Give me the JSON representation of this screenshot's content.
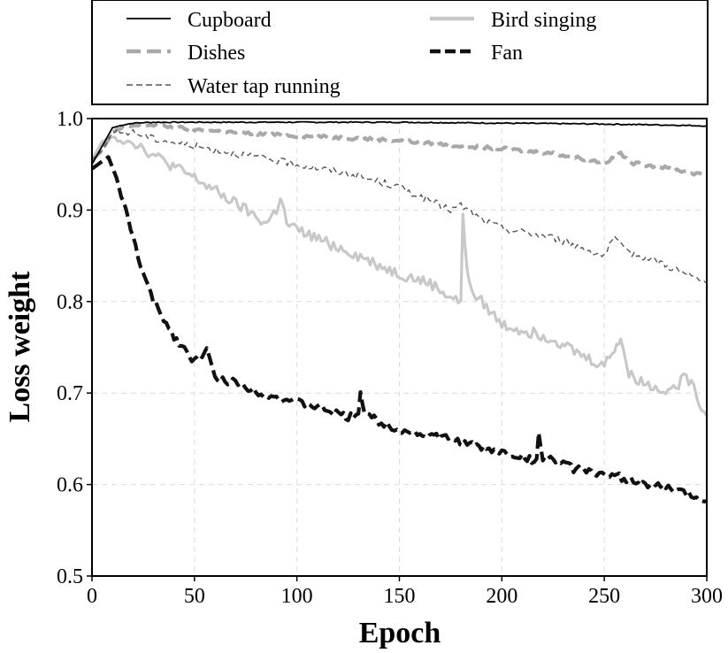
{
  "chart_data": {
    "type": "line",
    "title": "",
    "xlabel": "Epoch",
    "ylabel": "Loss weight",
    "xlim": [
      0,
      300
    ],
    "ylim": [
      0.5,
      1.0
    ],
    "xticks": [
      "0",
      "50",
      "100",
      "150",
      "200",
      "250",
      "300"
    ],
    "yticks": [
      "0.5",
      "0.6",
      "0.7",
      "0.8",
      "0.9",
      "1.0"
    ],
    "grid": true,
    "legend_position": "top (above plot, two columns)",
    "series": [
      {
        "name": "Cupboard",
        "style": "solid-thin",
        "color": "#000000",
        "x": [
          0,
          5,
          10,
          15,
          20,
          30,
          50,
          100,
          150,
          200,
          250,
          280,
          300
        ],
        "y": [
          0.95,
          0.97,
          0.99,
          0.993,
          0.995,
          0.996,
          0.996,
          0.996,
          0.996,
          0.995,
          0.994,
          0.993,
          0.992
        ]
      },
      {
        "name": "Dishes",
        "style": "dashed-thick",
        "color": "#a8aaa8",
        "x": [
          0,
          5,
          10,
          15,
          20,
          30,
          50,
          75,
          100,
          125,
          150,
          175,
          200,
          225,
          250,
          255,
          258,
          262,
          275,
          290,
          300
        ],
        "y": [
          0.955,
          0.965,
          0.985,
          0.99,
          0.992,
          0.993,
          0.988,
          0.984,
          0.981,
          0.979,
          0.976,
          0.971,
          0.967,
          0.962,
          0.952,
          0.957,
          0.963,
          0.952,
          0.948,
          0.942,
          0.937
        ]
      },
      {
        "name": "Water tap running",
        "style": "dashed-thin",
        "color": "#555555",
        "x": [
          0,
          5,
          10,
          20,
          30,
          50,
          75,
          100,
          125,
          150,
          175,
          180,
          190,
          200,
          225,
          250,
          255,
          260,
          275,
          290,
          300
        ],
        "y": [
          0.955,
          0.965,
          0.985,
          0.985,
          0.978,
          0.97,
          0.96,
          0.95,
          0.94,
          0.925,
          0.9,
          0.905,
          0.89,
          0.88,
          0.87,
          0.85,
          0.87,
          0.855,
          0.845,
          0.83,
          0.82
        ]
      },
      {
        "name": "Bird singing",
        "style": "solid-thick",
        "color": "#c8c9c7",
        "x": [
          0,
          5,
          10,
          20,
          30,
          50,
          75,
          85,
          90,
          92,
          95,
          100,
          125,
          150,
          165,
          175,
          180,
          181,
          183,
          185,
          190,
          200,
          225,
          240,
          250,
          255,
          258,
          262,
          275,
          285,
          290,
          300
        ],
        "y": [
          0.955,
          0.975,
          0.98,
          0.975,
          0.96,
          0.935,
          0.9,
          0.885,
          0.9,
          0.915,
          0.885,
          0.878,
          0.855,
          0.83,
          0.82,
          0.805,
          0.8,
          0.89,
          0.84,
          0.81,
          0.8,
          0.775,
          0.76,
          0.74,
          0.73,
          0.75,
          0.76,
          0.72,
          0.705,
          0.705,
          0.72,
          0.675
        ]
      },
      {
        "name": "Fan",
        "style": "dashed-thick",
        "color": "#111111",
        "x": [
          0,
          3,
          8,
          12,
          20,
          25,
          30,
          40,
          50,
          55,
          56,
          60,
          70,
          80,
          90,
          100,
          110,
          125,
          130,
          131,
          133,
          140,
          150,
          160,
          175,
          190,
          200,
          210,
          217,
          218,
          220,
          225,
          235,
          245,
          250,
          255,
          270,
          280,
          290,
          300
        ],
        "y": [
          0.945,
          0.95,
          0.958,
          0.935,
          0.87,
          0.83,
          0.8,
          0.762,
          0.735,
          0.745,
          0.748,
          0.715,
          0.712,
          0.702,
          0.695,
          0.69,
          0.685,
          0.673,
          0.68,
          0.7,
          0.68,
          0.668,
          0.66,
          0.655,
          0.65,
          0.64,
          0.635,
          0.63,
          0.625,
          0.655,
          0.63,
          0.628,
          0.617,
          0.615,
          0.608,
          0.61,
          0.6,
          0.597,
          0.59,
          0.582
        ]
      }
    ]
  }
}
